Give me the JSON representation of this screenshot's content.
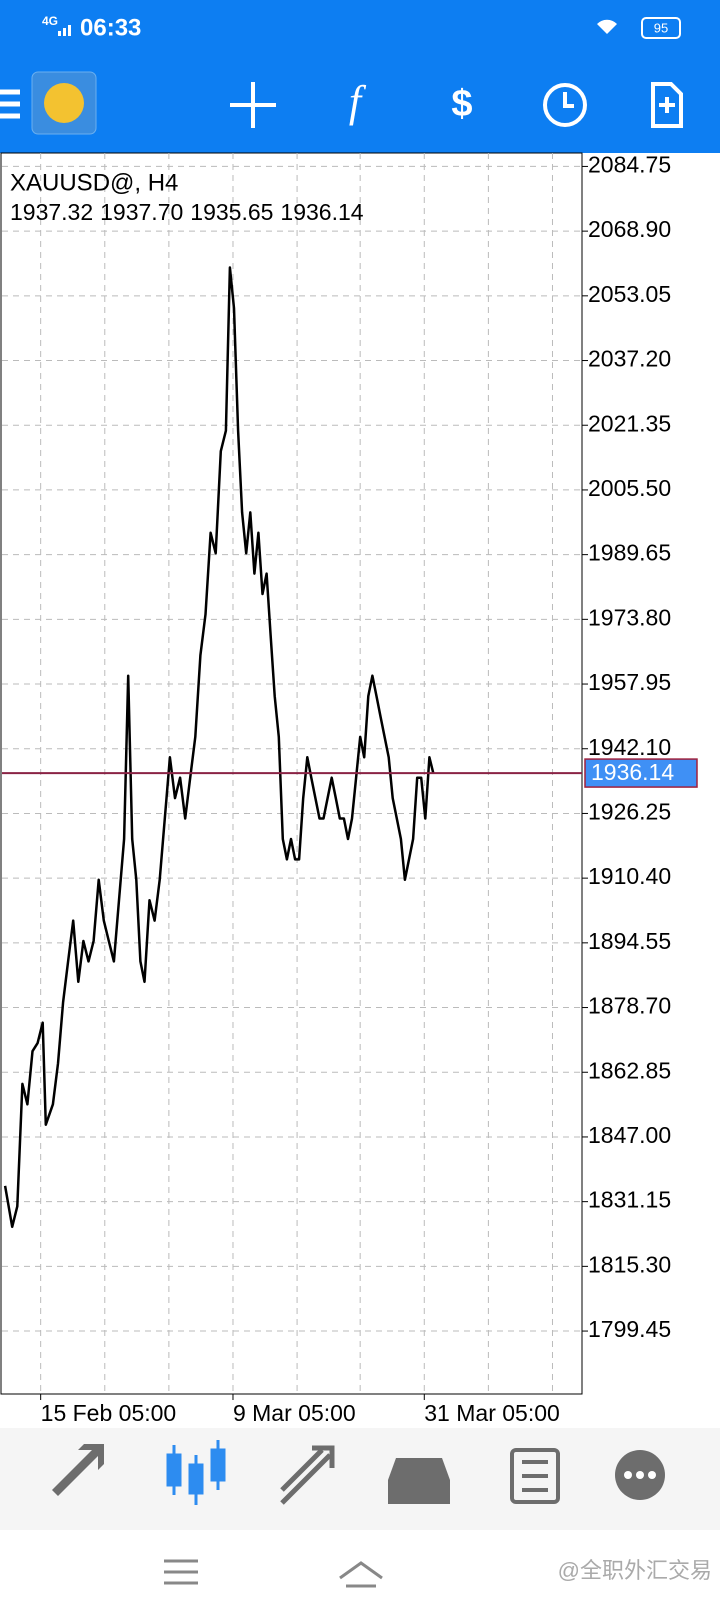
{
  "status_bar": {
    "network": "4G",
    "time": "06:33",
    "battery": "95"
  },
  "chart_header": {
    "symbol": "XAUUSD@, H4",
    "ohlc": [
      "1937.32",
      "1937.70",
      "1935.65",
      "1936.14"
    ]
  },
  "chart_data": {
    "type": "line",
    "color": "#000000",
    "x": [
      3,
      10,
      15,
      20,
      25,
      30,
      35,
      40,
      43,
      50,
      55,
      60,
      65,
      70,
      75,
      80,
      85,
      90,
      95,
      100,
      105,
      110,
      115,
      120,
      124,
      128,
      132,
      136,
      140,
      145,
      150,
      155,
      160,
      165,
      170,
      175,
      180,
      185,
      190,
      195,
      200,
      205,
      210,
      215,
      220,
      224,
      228,
      232,
      236,
      240,
      244,
      248,
      252,
      256,
      260,
      264,
      268,
      272,
      276,
      280,
      284,
      288,
      292,
      296,
      300,
      304,
      308,
      312,
      316,
      320,
      324,
      328,
      332,
      336,
      340,
      344,
      348,
      352,
      356,
      360,
      364,
      368,
      372,
      376,
      380,
      384,
      388,
      392,
      396,
      400,
      404,
      408,
      412,
      416,
      420,
      424
    ],
    "values": [
      1835,
      1825,
      1830,
      1860,
      1855,
      1868,
      1870,
      1875,
      1850,
      1855,
      1865,
      1880,
      1890,
      1900,
      1885,
      1895,
      1890,
      1895,
      1910,
      1900,
      1895,
      1890,
      1905,
      1920,
      1960,
      1920,
      1910,
      1890,
      1885,
      1905,
      1900,
      1910,
      1925,
      1940,
      1930,
      1935,
      1925,
      1935,
      1945,
      1965,
      1975,
      1995,
      1990,
      2015,
      2020,
      2060,
      2050,
      2020,
      2000,
      1990,
      2000,
      1985,
      1995,
      1980,
      1985,
      1970,
      1955,
      1945,
      1920,
      1915,
      1920,
      1915,
      1915,
      1930,
      1940,
      1935,
      1930,
      1925,
      1925,
      1930,
      1935,
      1930,
      1925,
      1925,
      1920,
      1925,
      1935,
      1945,
      1940,
      1955,
      1960,
      1955,
      1950,
      1945,
      1940,
      1930,
      1925,
      1920,
      1910,
      1915,
      1920,
      1935,
      1935,
      1925,
      1940,
      1936
    ],
    "xlim": [
      0,
      570
    ],
    "xticks": [
      {
        "value": 38,
        "label": "15 Feb 05:00"
      },
      {
        "value": 227,
        "label": "9 Mar 05:00"
      },
      {
        "value": 415,
        "label": "31 Mar 05:00"
      }
    ],
    "xgrid": [
      38,
      101,
      164,
      227,
      290,
      352,
      415,
      478,
      541
    ],
    "ylim": [
      1784.03,
      2088.04
    ],
    "yticks": [
      2084.75,
      {
        "value": 2068.9,
        "label": "2068.90"
      },
      2053.05,
      {
        "value": 2037.2,
        "label": "2037.20"
      },
      2021.35,
      {
        "value": 2005.5,
        "label": "2005.50"
      },
      1989.65,
      {
        "value": 1973.8,
        "label": "1973.80"
      },
      1957.95,
      {
        "value": 1942.1,
        "label": "1942.10"
      },
      1926.25,
      {
        "value": 1910.4,
        "label": "1910.40"
      },
      1894.55,
      {
        "value": 1878.7,
        "label": "1878.70"
      },
      1862.85,
      {
        "value": 1847,
        "label": "1847.00"
      },
      1831.15,
      {
        "value": 1815.3,
        "label": "1815.30"
      },
      1799.45
    ],
    "grid": true,
    "current_price": 1936.14
  },
  "watermark": "@全职外汇交易"
}
